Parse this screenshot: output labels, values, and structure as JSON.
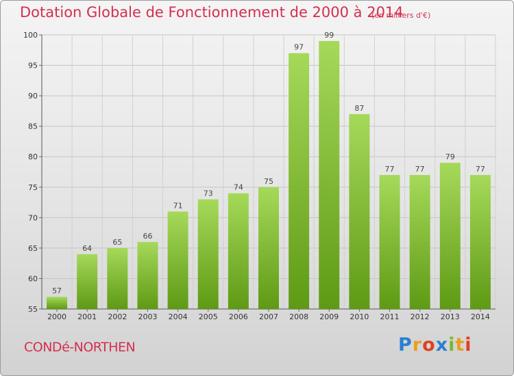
{
  "header": {
    "title": "Dotation Globale de Fonctionnement de 2000 à 2014",
    "unit": "(en milliers d'€)"
  },
  "footer": {
    "commune": "CONDé-NORTHEN",
    "logo_letters": [
      "P",
      "r",
      "o",
      "x",
      "i",
      "t",
      "i"
    ],
    "logo_colors": [
      "#2b7fd0",
      "#e8a020",
      "#e04020",
      "#2b7fd0",
      "#7ab830",
      "#e8a020",
      "#e04020"
    ]
  },
  "colors": {
    "bar_light": "#a6d95a",
    "bar_dark": "#5e9a14",
    "text_accent": "#d42f4f"
  },
  "chart_data": {
    "type": "bar",
    "title": "Dotation Globale de Fonctionnement de 2000 à 2014",
    "subtitle": "(en milliers d'€)",
    "categories": [
      "2000",
      "2001",
      "2002",
      "2003",
      "2004",
      "2005",
      "2006",
      "2007",
      "2008",
      "2009",
      "2010",
      "2011",
      "2012",
      "2013",
      "2014"
    ],
    "values": [
      57,
      64,
      65,
      66,
      71,
      73,
      74,
      75,
      97,
      99,
      87,
      77,
      77,
      79,
      77
    ],
    "ylim": [
      55,
      100
    ],
    "yticks": [
      55,
      60,
      65,
      70,
      75,
      80,
      85,
      90,
      95,
      100
    ],
    "grid": true,
    "xlabel": "",
    "ylabel": ""
  }
}
